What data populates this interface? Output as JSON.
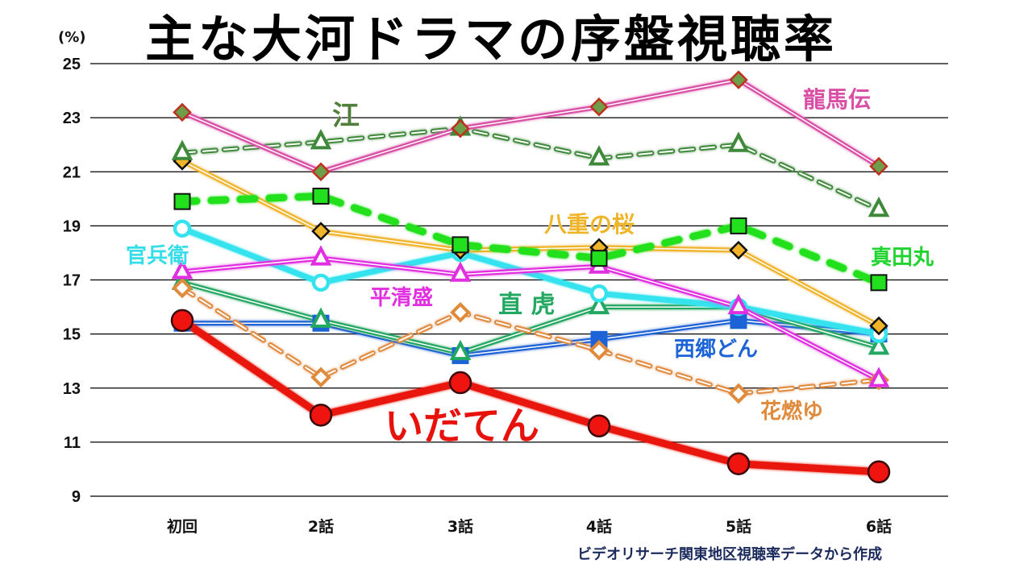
{
  "chart_data": {
    "type": "line",
    "title": "主な大河ドラマの序盤視聴率",
    "ylabel": "(%)",
    "xlabel": "",
    "source_note": "ビデオリサーチ関東地区視聴率データから作成",
    "ylim": [
      9,
      25
    ],
    "yticks": [
      "25",
      "23",
      "21",
      "19",
      "17",
      "15",
      "13",
      "11",
      "9"
    ],
    "ytick_values": [
      25,
      23,
      21,
      19,
      17,
      15,
      13,
      11,
      9
    ],
    "grid": true,
    "categories": [
      "初回",
      "2話",
      "3話",
      "4話",
      "5話",
      "6話"
    ],
    "series": [
      {
        "name": "龍馬伝",
        "values": [
          23.2,
          21.0,
          22.6,
          23.4,
          24.4,
          21.2
        ],
        "color": "#d94fa6",
        "marker": "diamond",
        "marker_fill": "#6e9e4a",
        "marker_stroke": "#c0301e",
        "line_style": "double"
      },
      {
        "name": "江",
        "values": [
          21.7,
          22.1,
          22.6,
          21.5,
          22.0,
          19.6
        ],
        "color": "#3f8a3a",
        "marker": "triangle-open",
        "marker_fill": "#ffffff",
        "marker_stroke": "#3f8a3a",
        "line_style": "dashed-outline"
      },
      {
        "name": "八重の桜",
        "values": [
          21.4,
          18.8,
          18.1,
          18.2,
          18.1,
          15.3
        ],
        "color": "#f0b429",
        "marker": "diamond",
        "marker_fill": "#f0b429",
        "marker_stroke": "#111111",
        "line_style": "double"
      },
      {
        "name": "真田丸",
        "values": [
          19.9,
          20.1,
          18.3,
          17.8,
          19.0,
          16.9
        ],
        "color": "#22e01e",
        "marker": "square",
        "marker_fill": "#22e01e",
        "marker_stroke": "#111111",
        "line_style": "dashed-thick"
      },
      {
        "name": "官兵衛",
        "values": [
          18.9,
          16.9,
          18.0,
          16.5,
          16.0,
          15.0
        ],
        "color": "#35e3ef",
        "marker": "circle-open",
        "marker_fill": "#ffffff",
        "marker_stroke": "#35e3ef",
        "line_style": "solid-thick"
      },
      {
        "name": "平清盛",
        "values": [
          17.3,
          17.8,
          17.2,
          17.5,
          16.0,
          13.3
        ],
        "color": "#e02ee0",
        "marker": "triangle-open",
        "marker_fill": "#ffffff",
        "marker_stroke": "#e02ee0",
        "line_style": "double"
      },
      {
        "name": "直虎",
        "values": [
          16.9,
          15.5,
          14.3,
          16.0,
          16.0,
          14.5
        ],
        "color": "#23a862",
        "marker": "triangle-open",
        "marker_fill": "#ffffff",
        "marker_stroke": "#23a862",
        "line_style": "double"
      },
      {
        "name": "西郷どん",
        "values": [
          15.4,
          15.4,
          14.2,
          14.8,
          15.5,
          15.0
        ],
        "color": "#1b63d6",
        "marker": "square",
        "marker_fill": "#1b63d6",
        "marker_stroke": "#1b63d6",
        "line_style": "double"
      },
      {
        "name": "花燃ゆ",
        "values": [
          16.7,
          13.4,
          15.8,
          14.4,
          12.8,
          13.3
        ],
        "color": "#e08a3c",
        "marker": "diamond-open",
        "marker_fill": "#ffffff",
        "marker_stroke": "#e08a3c",
        "line_style": "dashed-outline"
      },
      {
        "name": "いだてん",
        "values": [
          15.5,
          12.0,
          13.2,
          11.6,
          10.2,
          9.9
        ],
        "color": "#e8120c",
        "marker": "circle",
        "marker_fill": "#f01410",
        "marker_stroke": "#3a0a0a",
        "line_style": "solid-heavy"
      }
    ],
    "annotations": [
      {
        "text": "龍馬伝",
        "series": "龍馬伝",
        "color": "#d94fa6",
        "near": "5話-6話 above"
      },
      {
        "text": "江",
        "series": "江",
        "color": "#4f7f3a",
        "near": "2話-3話 above"
      },
      {
        "text": "八重の桜",
        "series": "八重の桜",
        "color": "#f0b429",
        "near": "4話 above"
      },
      {
        "text": "真田丸",
        "series": "真田丸",
        "color": "#22d430",
        "near": "6話 above"
      },
      {
        "text": "官兵衛",
        "series": "官兵衛",
        "color": "#35dde8",
        "near": "初回 left"
      },
      {
        "text": "平清盛",
        "series": "平清盛",
        "color": "#e02ee0",
        "near": "2話-3話 below"
      },
      {
        "text": "直 虎",
        "series": "直虎",
        "color": "#23a862",
        "near": "3話-4話"
      },
      {
        "text": "西郷どん",
        "series": "西郷どん",
        "color": "#1b63d6",
        "near": "5話 below"
      },
      {
        "text": "花燃ゆ",
        "series": "花燃ゆ",
        "color": "#e08a3c",
        "near": "5話-6話 below"
      },
      {
        "text": "いだてん",
        "series": "いだてん",
        "color": "#e8120c",
        "near": "3話 below"
      }
    ]
  }
}
